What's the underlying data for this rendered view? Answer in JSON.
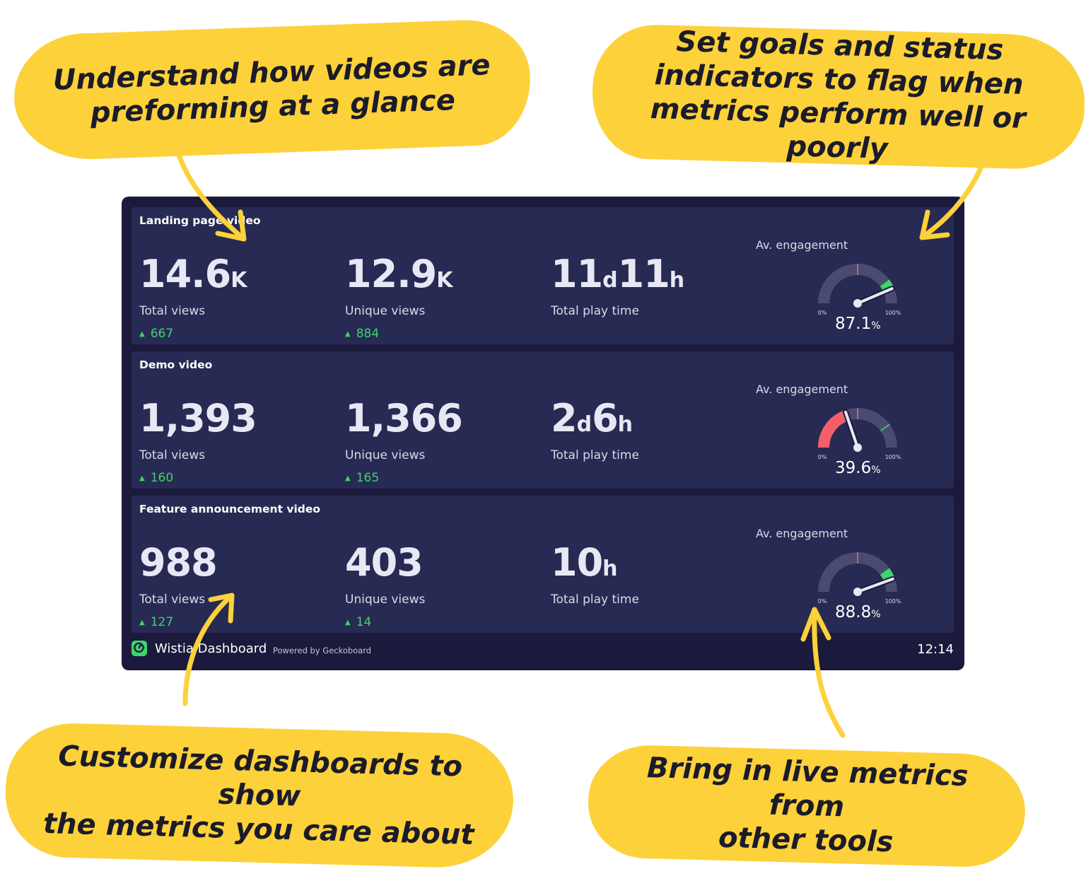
{
  "callouts": {
    "top_left": [
      "Understand how videos are",
      "preforming at a glance"
    ],
    "top_right": [
      "Set goals and status",
      "indicators to flag when",
      "metrics perform well or poorly"
    ],
    "bottom_left": [
      "Customize dashboards to show",
      "the metrics you care about"
    ],
    "bottom_right": [
      "Bring in live metrics from",
      "other tools"
    ]
  },
  "panels": [
    {
      "title": "Landing page video",
      "metrics": [
        {
          "value": "14.6",
          "unit": "K",
          "label": "Total views",
          "delta": "667"
        },
        {
          "value": "12.9",
          "unit": "K",
          "label": "Unique views",
          "delta": "884"
        },
        {
          "value1": "11",
          "unit1": "d",
          "value2": "11",
          "unit2": "h",
          "label": "Total play time"
        }
      ],
      "gauge": {
        "label": "Av. engagement",
        "min_label": "0%",
        "max_label": "100%",
        "value": "87.1",
        "unit": "%",
        "fraction": 0.871,
        "status": "good"
      }
    },
    {
      "title": "Demo video",
      "metrics": [
        {
          "value": "1,393",
          "unit": "",
          "label": "Total views",
          "delta": "160"
        },
        {
          "value": "1,366",
          "unit": "",
          "label": "Unique views",
          "delta": "165"
        },
        {
          "value1": "2",
          "unit1": "d",
          "value2": "6",
          "unit2": "h",
          "label": "Total play time"
        }
      ],
      "gauge": {
        "label": "Av. engagement",
        "min_label": "0%",
        "max_label": "100%",
        "value": "39.6",
        "unit": "%",
        "fraction": 0.396,
        "status": "bad"
      }
    },
    {
      "title": "Feature announcement video",
      "metrics": [
        {
          "value": "988",
          "unit": "",
          "label": "Total views",
          "delta": "127"
        },
        {
          "value": "403",
          "unit": "",
          "label": "Unique views",
          "delta": "14"
        },
        {
          "value1": "10",
          "unit1": "h",
          "value2": "",
          "unit2": "",
          "label": "Total play time"
        }
      ],
      "gauge": {
        "label": "Av. engagement",
        "min_label": "0%",
        "max_label": "100%",
        "value": "88.8",
        "unit": "%",
        "fraction": 0.888,
        "status": "good"
      }
    }
  ],
  "footer": {
    "title": "Wistia Dashboard",
    "powered": "Powered by Geckoboard",
    "time": "12:14"
  },
  "colors": {
    "good": "#3FD46B",
    "bad": "#F55E6B",
    "track": "#4A4B70",
    "needle": "#E7E8F4",
    "accent": "#FDD13A"
  },
  "icons": {
    "delta": "triangle-up-icon",
    "logo": "wistia-logo-icon"
  }
}
